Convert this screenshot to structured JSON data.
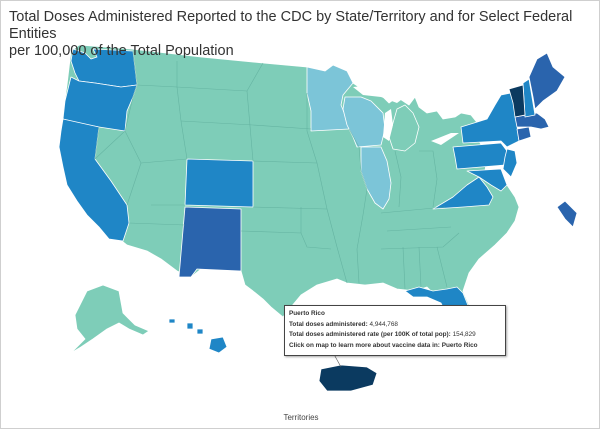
{
  "title": {
    "line1": "Total Doses Administered Reported to the CDC by State/Territory and for Select Federal Entities",
    "line2": "per 100,000 of the Total Population"
  },
  "colors": {
    "tier1": "#7ecdb8",
    "tier2": "#7cc5d8",
    "tier3": "#3d9fd1",
    "tier4": "#1f86c6",
    "tier5": "#2a64ad",
    "tier6": "#0b3a60"
  },
  "tooltip": {
    "title": "Puerto Rico",
    "doses_label": "Total doses administered:",
    "doses_value": "4,944,768",
    "rate_label": "Total doses administered rate (per 100K of total pop):",
    "rate_value": "154,829",
    "cta": "Click on map to learn more about vaccine data in: Puerto Rico"
  },
  "footer": {
    "territories_label": "Territories"
  }
}
